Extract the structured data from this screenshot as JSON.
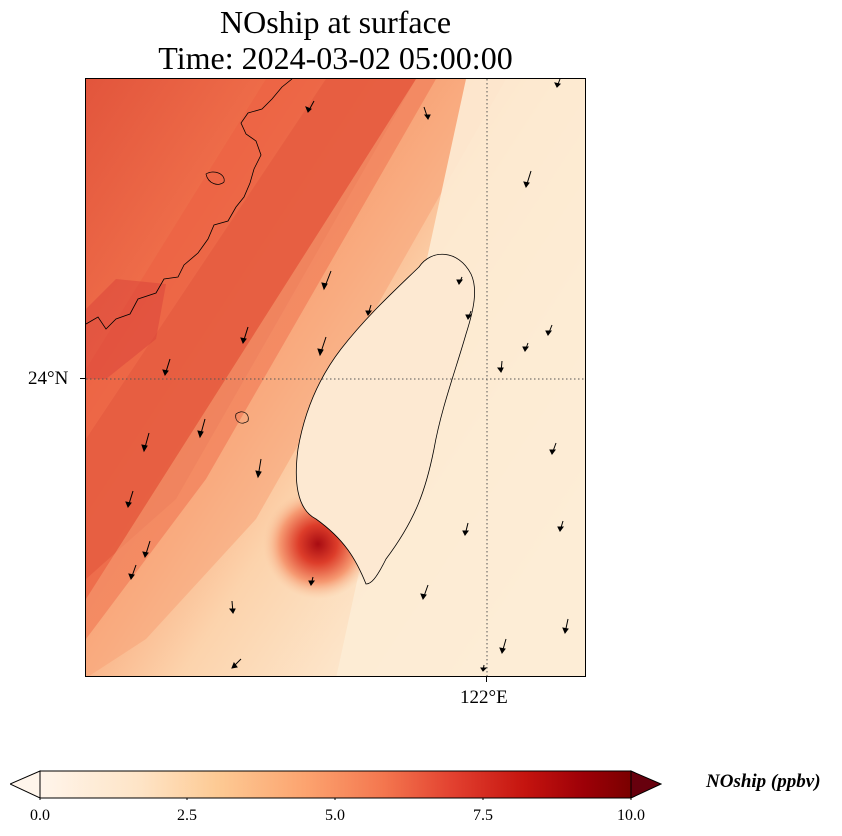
{
  "title": {
    "line1": "NOship at surface",
    "line2": "Time: 2024-03-02 05:00:00"
  },
  "map": {
    "lat_label": "24°N",
    "lon_label": "122°E",
    "gridlines": "dotted",
    "coastline_color": "#000000"
  },
  "colorbar": {
    "label": "NOship (ppbv)",
    "ticks": [
      "0.0",
      "2.5",
      "5.0",
      "7.5",
      "10.0"
    ],
    "min": 0,
    "max": 10,
    "extend": "both",
    "colormap": [
      "#fff5eb",
      "#fdd9b3",
      "#fdae6b",
      "#f16913",
      "#d94801",
      "#a50f15",
      "#67000d"
    ],
    "colormap_name": "OrRd"
  }
}
